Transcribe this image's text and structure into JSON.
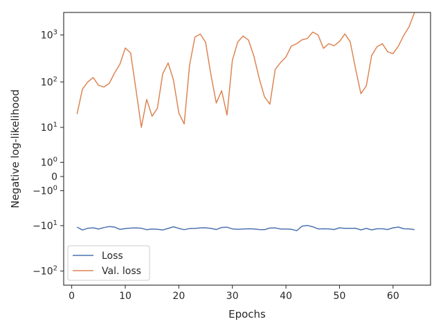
{
  "chart_data": {
    "type": "line",
    "title": "",
    "xlabel": "Epochs",
    "ylabel": "Negative log-likelihood",
    "yscale": "symlog",
    "xlim": [
      -1.5,
      67
    ],
    "ylim": [
      -200,
      3000
    ],
    "x_ticks": [
      0,
      10,
      20,
      30,
      40,
      50,
      60
    ],
    "x_tick_labels": [
      "0",
      "10",
      "20",
      "30",
      "40",
      "50",
      "60"
    ],
    "y_ticks": [
      -100,
      -10,
      -1,
      0,
      1,
      10,
      100,
      1000
    ],
    "y_tick_labels": [
      {
        "base": "−10",
        "exp": "2"
      },
      {
        "base": "−10",
        "exp": "1"
      },
      {
        "base": "−10",
        "exp": "0"
      },
      {
        "base": "0",
        "exp": ""
      },
      {
        "base": "10",
        "exp": "0"
      },
      {
        "base": "10",
        "exp": "1"
      },
      {
        "base": "10",
        "exp": "2"
      },
      {
        "base": "10",
        "exp": "3"
      }
    ],
    "grid": false,
    "legend_position": "lower-left",
    "x": [
      1,
      2,
      3,
      4,
      5,
      6,
      7,
      8,
      9,
      10,
      11,
      12,
      13,
      14,
      15,
      16,
      17,
      18,
      19,
      20,
      21,
      22,
      23,
      24,
      25,
      26,
      27,
      28,
      29,
      30,
      31,
      32,
      33,
      34,
      35,
      36,
      37,
      38,
      39,
      40,
      41,
      42,
      43,
      44,
      45,
      46,
      47,
      48,
      49,
      50,
      51,
      52,
      53,
      54,
      55,
      56,
      57,
      58,
      59,
      60,
      61,
      62,
      63,
      64
    ],
    "series": [
      {
        "name": "Loss",
        "color": "#4c72b0",
        "values": [
          -10.8,
          -12.6,
          -11.5,
          -11.2,
          -12.0,
          -11.1,
          -10.5,
          -10.8,
          -12.2,
          -11.7,
          -11.4,
          -11.3,
          -11.5,
          -12.4,
          -12.0,
          -12.1,
          -12.6,
          -11.6,
          -10.6,
          -11.6,
          -12.4,
          -11.7,
          -11.6,
          -11.3,
          -11.2,
          -11.6,
          -12.3,
          -11.0,
          -10.9,
          -11.9,
          -12.1,
          -12.0,
          -11.8,
          -11.9,
          -12.3,
          -12.4,
          -11.4,
          -11.3,
          -12.0,
          -12.0,
          -12.1,
          -13.1,
          -10.3,
          -9.9,
          -10.6,
          -11.9,
          -11.8,
          -11.9,
          -12.3,
          -11.2,
          -11.6,
          -11.6,
          -11.5,
          -12.5,
          -11.6,
          -12.5,
          -11.8,
          -11.8,
          -12.3,
          -11.2,
          -10.8,
          -11.8,
          -11.9,
          -12.4
        ]
      },
      {
        "name": "Val. loss",
        "color": "#dd8452",
        "values": [
          20,
          70,
          100,
          125,
          85,
          78,
          93,
          155,
          238,
          530,
          415,
          68,
          10,
          42,
          18,
          27,
          150,
          255,
          110,
          21,
          12,
          225,
          900,
          1050,
          700,
          140,
          35,
          65,
          19,
          290,
          710,
          950,
          780,
          360,
          120,
          48,
          33,
          185,
          260,
          340,
          580,
          650,
          790,
          840,
          1150,
          1000,
          520,
          650,
          590,
          730,
          1050,
          720,
          190,
          56,
          82,
          365,
          560,
          650,
          440,
          400,
          580,
          980,
          1500,
          3000
        ]
      }
    ]
  }
}
